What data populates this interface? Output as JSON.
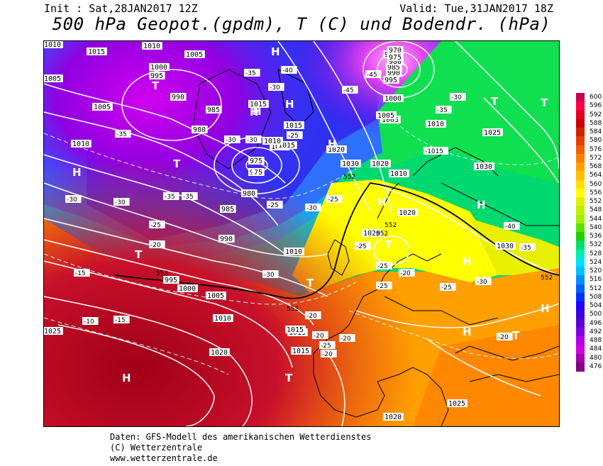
{
  "header": {
    "init": "Init : Sat,28JAN2017 12Z",
    "valid": "Valid: Tue,31JAN2017 18Z",
    "title": "500 hPa Geopot.(gpdm), T (C) und Bodendr. (hPa)"
  },
  "colorbar": {
    "levels": [
      "600",
      "596",
      "592",
      "588",
      "584",
      "580",
      "576",
      "572",
      "568",
      "564",
      "560",
      "556",
      "552",
      "548",
      "544",
      "540",
      "536",
      "532",
      "528",
      "524",
      "520",
      "516",
      "512",
      "508",
      "504",
      "500",
      "496",
      "492",
      "488",
      "484",
      "480",
      "476"
    ],
    "colors": [
      "#c80050",
      "#ff0040",
      "#e00020",
      "#c80000",
      "#d02000",
      "#e04000",
      "#f06000",
      "#f88000",
      "#ffa000",
      "#ffc000",
      "#ffe000",
      "#ffff00",
      "#e0f000",
      "#c0f000",
      "#a0f000",
      "#60e000",
      "#20d000",
      "#00e060",
      "#00f0b0",
      "#00e0ff",
      "#00c0ff",
      "#0090ff",
      "#0060ff",
      "#0030ff",
      "#2000ff",
      "#4000e0",
      "#6000d0",
      "#8000e0",
      "#b000f0",
      "#d000e0",
      "#a000b0",
      "#800080"
    ]
  },
  "map_labels": {
    "pressure": [
      "1010",
      "1015",
      "1010",
      "1005",
      "1000",
      "995",
      "990",
      "985",
      "980",
      "1005",
      "1005",
      "1010",
      "1015",
      "1015",
      "1010",
      "975",
      "975",
      "980",
      "985",
      "990",
      "995",
      "1000",
      "1005",
      "1010",
      "1015",
      "1020",
      "1025",
      "1030",
      "1025",
      "1020",
      "1010",
      "1005",
      "1000",
      "995",
      "990",
      "985",
      "980",
      "975",
      "970",
      "975",
      "1020",
      "1030",
      "1030",
      "1015",
      "1010",
      "1020",
      "1025",
      "1025",
      "1020",
      "1015",
      "1015",
      "1010",
      "1010",
      "1005",
      "1020"
    ],
    "temperature": [
      "-35",
      "-30",
      "-40",
      "-45",
      "-45",
      "-30",
      "-35",
      "-30",
      "-30",
      "-25",
      "-30",
      "-35",
      "-25",
      "-20",
      "-15",
      "-35",
      "-30",
      "-35",
      "-25",
      "-30",
      "-25",
      "-20",
      "-25",
      "-20",
      "-15",
      "-10",
      "-20",
      "-20",
      "-20",
      "-25",
      "-25",
      "-20",
      "-25",
      "-30",
      "-40",
      "-35",
      "-25",
      "-30",
      "-1015"
    ],
    "geopot": [
      "552",
      "552",
      "552",
      "552",
      "552",
      "552"
    ],
    "highs": [
      "H",
      "H",
      "H",
      "H",
      "H",
      "H",
      "H",
      "H",
      "H",
      "H",
      "H",
      "H"
    ],
    "lows": [
      "T",
      "T",
      "T",
      "T",
      "T",
      "T",
      "T",
      "T",
      "T",
      "T"
    ]
  },
  "footer": {
    "line1": "Daten: GFS-Modell des amerikanischen Wetterdienstes",
    "line2": "(C) Wetterzentrale",
    "line3": "www.wetterzentrale.de"
  }
}
